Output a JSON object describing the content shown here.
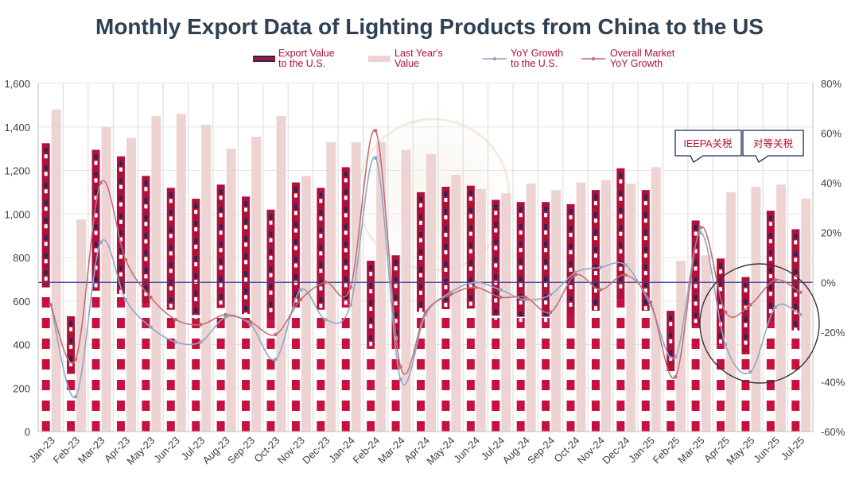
{
  "chart_data": {
    "type": "bar",
    "title": "Monthly Export Data of Lighting Products from China to the US",
    "categories": [
      "Jan-23",
      "Feb-23",
      "Mar-23",
      "Apr-23",
      "May-23",
      "Jun-23",
      "Jul-23",
      "Aug-23",
      "Sep-23",
      "Oct-23",
      "Nov-23",
      "Dec-23",
      "Jan-24",
      "Feb-24",
      "Mar-24",
      "Apr-24",
      "May-24",
      "Jun-24",
      "Jul-24",
      "Aug-24",
      "Sep-24",
      "Oct-24",
      "Nov-24",
      "Dec-24",
      "Jan-25",
      "Feb-25",
      "Mar-25",
      "Apr-25",
      "May-25",
      "Jun-25",
      "Jul-25"
    ],
    "series": [
      {
        "name": "Export Value to the U.S.",
        "axis": "left",
        "kind": "bar",
        "color": "#b0103a",
        "values": [
          1325,
          530,
          1295,
          1265,
          1175,
          1120,
          1070,
          1135,
          1080,
          1020,
          1145,
          1120,
          1215,
          785,
          810,
          1100,
          1125,
          1130,
          1065,
          1055,
          1055,
          1045,
          1110,
          1210,
          1110,
          555,
          970,
          795,
          710,
          1015,
          930
        ]
      },
      {
        "name": "Last Year's Value",
        "axis": "left",
        "kind": "bar",
        "color": "#eed3d3",
        "values": [
          1480,
          975,
          1400,
          1350,
          1450,
          1460,
          1410,
          1300,
          1355,
          1450,
          1175,
          1330,
          1330,
          1330,
          1295,
          1275,
          1180,
          1115,
          1095,
          1140,
          1110,
          1145,
          1155,
          1140,
          1215,
          785,
          810,
          1100,
          1125,
          1135,
          1070
        ]
      },
      {
        "name": "YoY Growth to the U.S.",
        "axis": "right",
        "kind": "line",
        "color": "#8fa8c8",
        "values": [
          -9,
          -46,
          16,
          -7,
          -18,
          -24,
          -24,
          -14,
          -17,
          -31,
          -3,
          -15,
          -9,
          50,
          -39,
          -13,
          -4,
          0,
          -3,
          -7,
          -5,
          4,
          6,
          7,
          -9,
          -30,
          20,
          -25,
          -36,
          -10,
          -13
        ]
      },
      {
        "name": "Overall Market YoY Growth",
        "axis": "right",
        "kind": "line",
        "color": "#c06f78",
        "values": [
          -9,
          -31,
          40,
          9,
          -6,
          -15,
          -17,
          -13,
          -16,
          -21,
          -7,
          0,
          -2,
          61,
          -34,
          -12,
          -5,
          -2,
          -6,
          -6,
          -12,
          3,
          -3,
          3,
          -8,
          -38,
          22,
          -12,
          -9,
          1,
          -4
        ]
      }
    ],
    "ylim": [
      0,
      1600
    ],
    "yticks": [
      "0",
      "200",
      "400",
      "600",
      "800",
      "1,000",
      "1,200",
      "1,400",
      "1,600"
    ],
    "y2lim": [
      -60,
      80
    ],
    "y2ticks": [
      "-60%",
      "-40%",
      "-20%",
      "0%",
      "20%",
      "40%",
      "60%",
      "80%"
    ],
    "legend": [
      {
        "line1": "Export Value",
        "line2": "to the U.S."
      },
      {
        "line1": "Last Year's",
        "line2": "Value"
      },
      {
        "line1": "YoY Growth",
        "line2": "to the U.S."
      },
      {
        "line1": "Overall Market",
        "line2": "YoY Growth"
      }
    ],
    "legend_position": "top-center",
    "annotations": [
      "IEEPA关税",
      "对等关税"
    ],
    "xlabel": "",
    "ylabel": ""
  }
}
